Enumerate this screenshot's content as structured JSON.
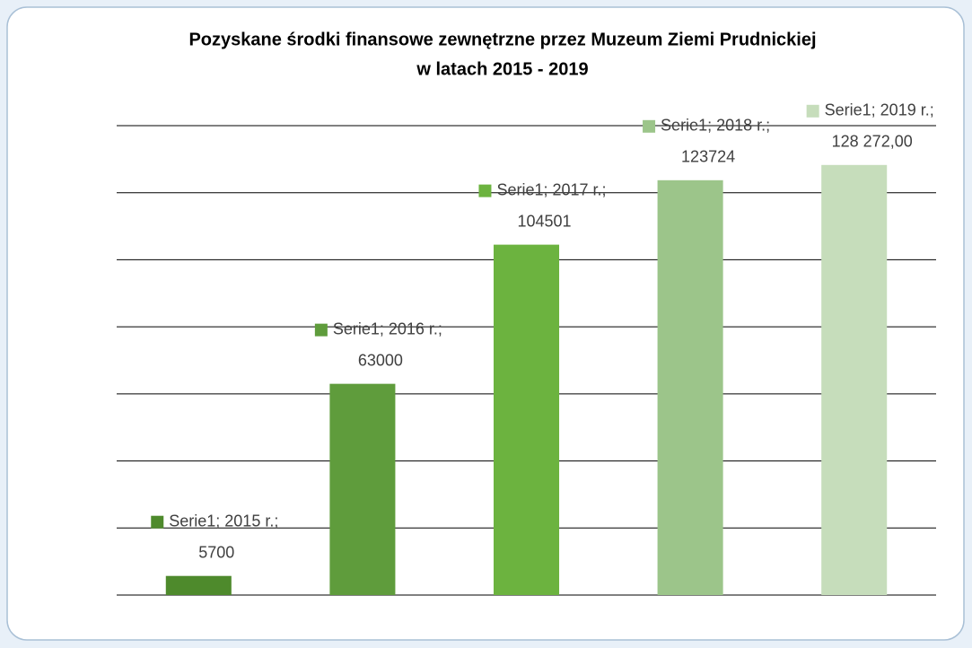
{
  "chart_data": {
    "type": "bar",
    "title": "Pozyskane środki finansowe zewnętrzne przez Muzeum Ziemi Prudnickiej",
    "subtitle": "w latach 2015 - 2019",
    "series": [
      {
        "name": "Serie1",
        "values": [
          5700,
          63000,
          104501,
          123724,
          128272
        ],
        "value_labels": [
          "5700",
          "63000",
          "104501",
          "123724",
          "128 272,00"
        ],
        "point_labels": [
          "Serie1; 2015 r.;",
          "Serie1; 2016 r.;",
          "Serie1; 2017 r.;",
          "Serie1; 2018 r.;",
          "Serie1; 2019 r.;"
        ],
        "colors": [
          "#4e8a2c",
          "#5f9c3c",
          "#6cb33f",
          "#9cc58a",
          "#c6ddbb"
        ]
      }
    ],
    "ylim": [
      0,
      140000
    ],
    "yticks": [
      0,
      20000,
      40000,
      60000,
      80000,
      100000,
      120000,
      140000
    ],
    "grid": true
  }
}
